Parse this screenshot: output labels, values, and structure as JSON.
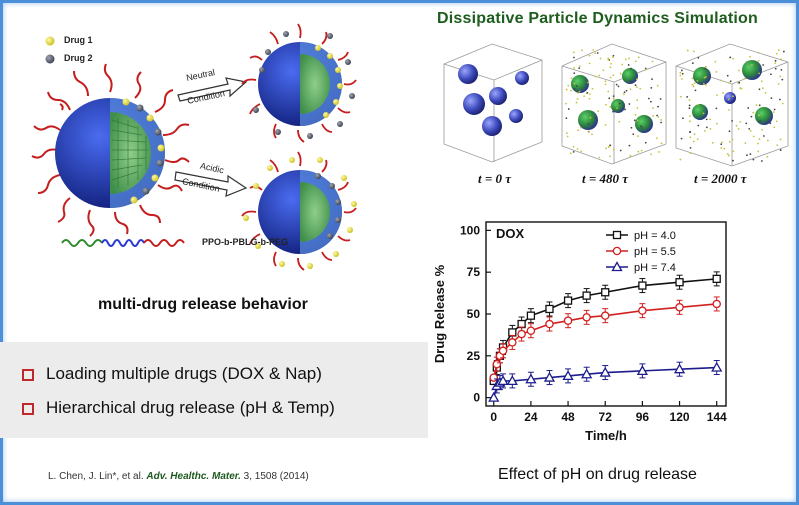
{
  "left_diagram": {
    "legend": [
      {
        "label": "Drug 1",
        "color": "#e6e04a"
      },
      {
        "label": "Drug 2",
        "color": "#555a66"
      }
    ],
    "arrow_neutral": [
      "Neutral",
      "Condition"
    ],
    "arrow_acidic": [
      "Acidic",
      "Condition"
    ],
    "polymer_label": "PPO-b-PBLG-b-PEG",
    "caption": "multi-drug release behavior"
  },
  "bullets": [
    "Loading multiple drugs (DOX & Nap)",
    "Hierarchical drug release (pH & Temp)"
  ],
  "reference": {
    "authors": "L. Chen, J. Lin*, et al.",
    "journal": "Adv. Healthc.  Mater.",
    "details": " 3, 1508 (2014)"
  },
  "dpd": {
    "title": "Dissipative Particle Dynamics Simulation",
    "times": [
      "t = 0 τ",
      "t = 480 τ",
      "t = 2000 τ"
    ]
  },
  "chart_data": {
    "type": "line",
    "annotation": "DOX",
    "xlabel": "Time/h",
    "ylabel": "Drug Release %",
    "xlim": [
      -5,
      150
    ],
    "ylim": [
      -5,
      105
    ],
    "xticks": [
      0,
      24,
      48,
      72,
      96,
      120,
      144
    ],
    "yticks": [
      0,
      25,
      50,
      75,
      100
    ],
    "legend_position": "top-right",
    "series": [
      {
        "name": "pH = 4.0",
        "color": "#111111",
        "marker": "square",
        "x": [
          0,
          2,
          4,
          6,
          12,
          18,
          24,
          36,
          48,
          60,
          72,
          96,
          120,
          144
        ],
        "y": [
          10,
          18,
          25,
          30,
          39,
          44,
          49,
          53,
          58,
          61,
          63,
          67,
          69,
          71
        ]
      },
      {
        "name": "pH = 5.5",
        "color": "#d22020",
        "marker": "circle",
        "x": [
          0,
          2,
          4,
          6,
          12,
          18,
          24,
          36,
          48,
          60,
          72,
          96,
          120,
          144
        ],
        "y": [
          12,
          20,
          25,
          28,
          33,
          38,
          40,
          44,
          46,
          48,
          49,
          52,
          54,
          56
        ]
      },
      {
        "name": "pH = 7.4",
        "color": "#1c1c8c",
        "marker": "triangle",
        "x": [
          0,
          2,
          4,
          6,
          12,
          24,
          36,
          48,
          60,
          72,
          96,
          120,
          144
        ],
        "y": [
          0,
          7,
          9,
          10,
          10,
          11,
          12,
          13,
          14,
          15,
          16,
          17,
          18
        ]
      }
    ]
  }
}
